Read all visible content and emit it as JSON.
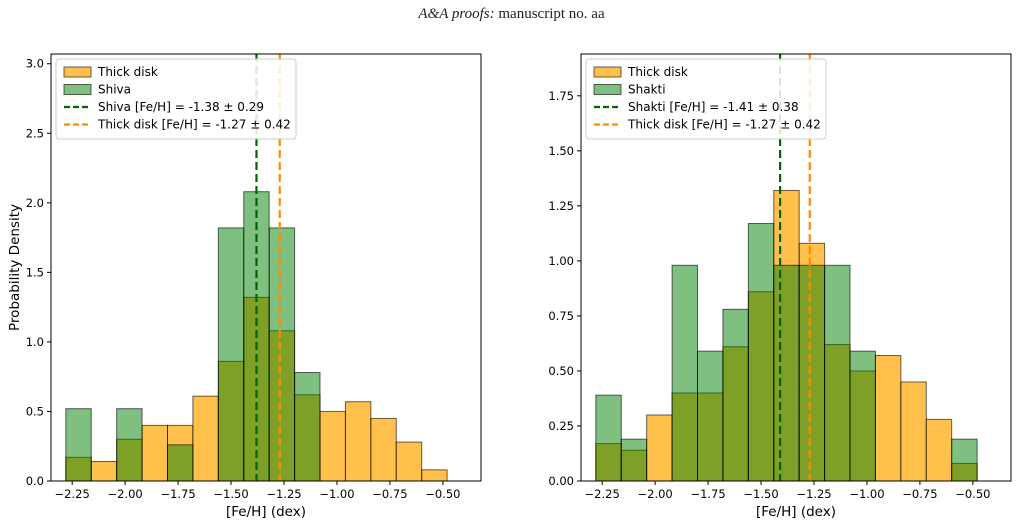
{
  "header": {
    "journal": "A&A proofs:",
    "rest": " manuscript no. aa"
  },
  "chart_data": [
    {
      "type": "bar",
      "xlabel": "[Fe/H] (dex)",
      "ylabel": "Probability Density",
      "xlim": [
        -2.35,
        -0.32
      ],
      "ylim": [
        0,
        3.07
      ],
      "xticks": [
        -2.25,
        -2.0,
        -1.75,
        -1.5,
        -1.25,
        -1.0,
        -0.75,
        -0.5
      ],
      "xtick_labels": [
        "−2.25",
        "−2.00",
        "−1.75",
        "−1.50",
        "−1.25",
        "−1.00",
        "−0.75",
        "−0.50"
      ],
      "yticks": [
        0,
        0.5,
        1.0,
        1.5,
        2.0,
        2.5,
        3.0
      ],
      "ytick_labels": [
        "0.0",
        "0.5",
        "1.0",
        "1.5",
        "2.0",
        "2.5",
        "3.0"
      ],
      "bin_edges": [
        -2.28,
        -2.16,
        -2.04,
        -1.92,
        -1.8,
        -1.68,
        -1.56,
        -1.44,
        -1.32,
        -1.2,
        -1.08,
        -0.96,
        -0.84,
        -0.72,
        -0.6,
        -0.48,
        -0.36
      ],
      "series": [
        {
          "name": "Thick disk",
          "color": "#ffa500",
          "values": [
            0.17,
            0.14,
            0.3,
            0.4,
            0.4,
            0.61,
            0.86,
            1.32,
            1.08,
            0.62,
            0.5,
            0.57,
            0.45,
            0.28,
            0.08
          ]
        },
        {
          "name": "Shiva",
          "color": "#008000",
          "values": [
            0.52,
            0,
            0.52,
            0,
            0.26,
            0,
            1.82,
            2.08,
            1.82,
            0.78,
            0,
            0,
            0,
            0,
            0
          ]
        }
      ],
      "vlines": [
        {
          "label": "Shiva [Fe/H] = -1.38 ± 0.29",
          "x": -1.38,
          "color": "#006400"
        },
        {
          "label": "Thick disk [Fe/H] = -1.27 ± 0.42",
          "x": -1.27,
          "color": "#ff8c00"
        }
      ],
      "grid": false,
      "legend": "top-left"
    },
    {
      "type": "bar",
      "xlabel": "[Fe/H] (dex)",
      "ylabel": "",
      "xlim": [
        -2.35,
        -0.32
      ],
      "ylim": [
        0,
        1.94
      ],
      "xticks": [
        -2.25,
        -2.0,
        -1.75,
        -1.5,
        -1.25,
        -1.0,
        -0.75,
        -0.5
      ],
      "xtick_labels": [
        "−2.25",
        "−2.00",
        "−1.75",
        "−1.50",
        "−1.25",
        "−1.00",
        "−0.75",
        "−0.50"
      ],
      "yticks": [
        0,
        0.25,
        0.5,
        0.75,
        1.0,
        1.25,
        1.5,
        1.75
      ],
      "ytick_labels": [
        "0.00",
        "0.25",
        "0.50",
        "0.75",
        "1.00",
        "1.25",
        "1.50",
        "1.75"
      ],
      "bin_edges": [
        -2.28,
        -2.16,
        -2.04,
        -1.92,
        -1.8,
        -1.68,
        -1.56,
        -1.44,
        -1.32,
        -1.2,
        -1.08,
        -0.96,
        -0.84,
        -0.72,
        -0.6,
        -0.48,
        -0.36
      ],
      "series": [
        {
          "name": "Thick disk",
          "color": "#ffa500",
          "values": [
            0.17,
            0.14,
            0.3,
            0.4,
            0.4,
            0.61,
            0.86,
            1.32,
            1.08,
            0.62,
            0.5,
            0.57,
            0.45,
            0.28,
            0.08
          ]
        },
        {
          "name": "Shakti",
          "color": "#008000",
          "values": [
            0.39,
            0.19,
            0,
            0.98,
            0.59,
            0.78,
            1.17,
            0.98,
            0.98,
            0.98,
            0.59,
            0,
            0,
            0,
            0.19
          ]
        }
      ],
      "vlines": [
        {
          "label": "Shakti [Fe/H] = -1.41 ± 0.38",
          "x": -1.41,
          "color": "#006400"
        },
        {
          "label": "Thick disk [Fe/H] = -1.27 ± 0.42",
          "x": -1.27,
          "color": "#ff8c00"
        }
      ],
      "grid": false,
      "legend": "top-left"
    }
  ]
}
